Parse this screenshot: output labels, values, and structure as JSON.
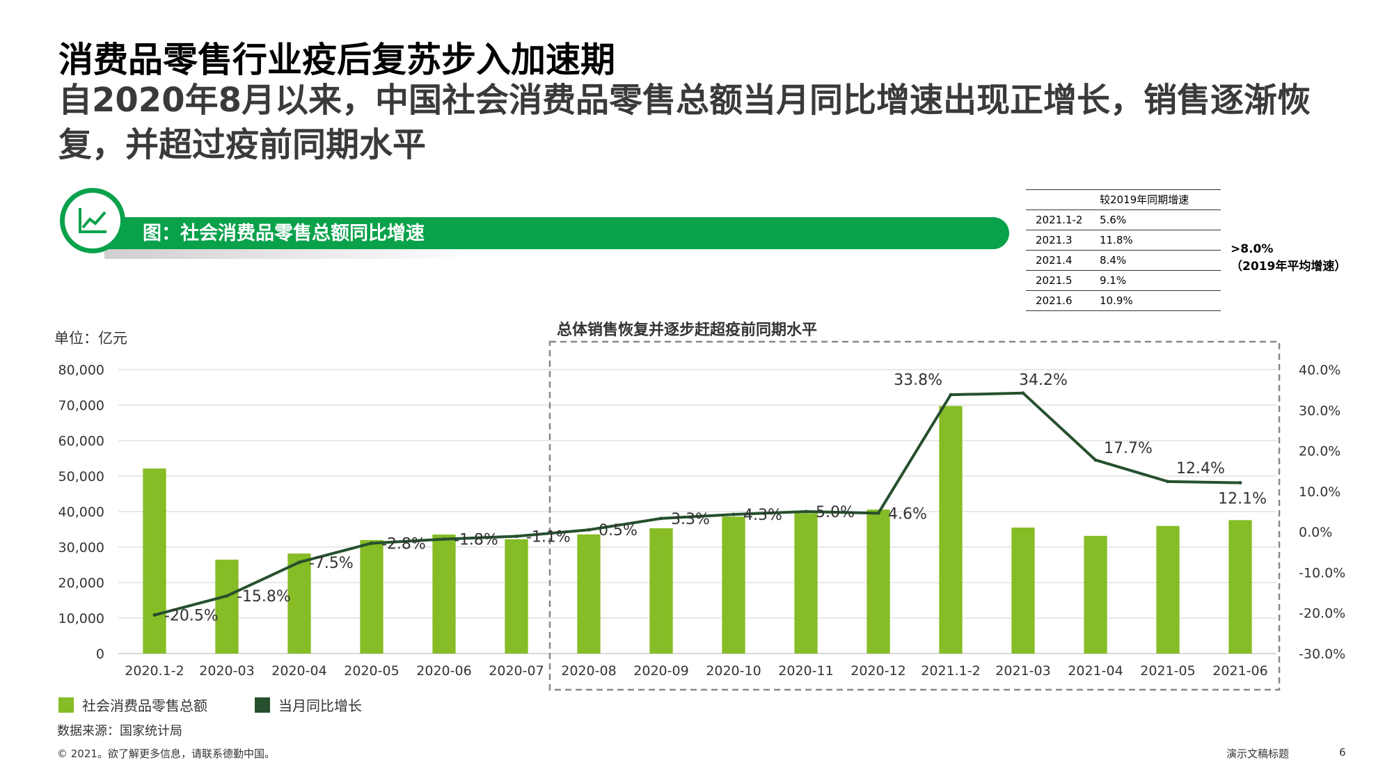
{
  "slide": {
    "title": "消费品零售行业疫后复苏步入加速期",
    "subtitle": "自2020年8月以来，中国社会消费品零售总额当月同比增速出现正增长，销售逐渐恢复，并超过疫前同期水平",
    "figure_banner": "图：社会消费品零售总额同比增速",
    "unit_label": "单位：亿元",
    "box_label": "总体销售恢复并逐步赶超疫前同期水平",
    "source": "数据来源：国家统计局",
    "copyright": "© 2021。欲了解更多信息，请联系德勤中国。",
    "footer_title": "演示文稿标题",
    "page_number": "6",
    "accent_green": "#0aa14b",
    "icon": "line-chart-icon"
  },
  "comparison_table": {
    "header": "较2019年同期增速",
    "rows": [
      {
        "period": "2021.1-2",
        "growth": "5.6%"
      },
      {
        "period": "2021.3",
        "growth": "11.8%"
      },
      {
        "period": "2021.4",
        "growth": "8.4%"
      },
      {
        "period": "2021.5",
        "growth": "9.1%"
      },
      {
        "period": "2021.6",
        "growth": "10.9%"
      }
    ],
    "note_line1": ">8.0%",
    "note_line2": "（2019年平均增速）"
  },
  "legend": {
    "bar": "社会消费品零售总额",
    "line": "当月同比增长"
  },
  "chart_data": {
    "type": "bar",
    "categories": [
      "2020.1-2",
      "2020-03",
      "2020-04",
      "2020-05",
      "2020-06",
      "2020-07",
      "2020-08",
      "2020-09",
      "2020-10",
      "2020-11",
      "2020-12",
      "2021.1-2",
      "2021-03",
      "2021-04",
      "2021-05",
      "2021-06"
    ],
    "series": [
      {
        "name": "社会消费品零售总额",
        "type": "bar",
        "axis": "left",
        "color": "#86bc25",
        "values": [
          52130,
          26450,
          28178,
          31973,
          33526,
          32203,
          33571,
          35295,
          38576,
          39514,
          40566,
          69737,
          35484,
          33153,
          35945,
          37586
        ]
      },
      {
        "name": "当月同比增长",
        "type": "line",
        "axis": "right",
        "color": "#26502e",
        "values": [
          -20.5,
          -15.8,
          -7.5,
          -2.8,
          -1.8,
          -1.1,
          0.5,
          3.3,
          4.3,
          5.0,
          4.6,
          33.8,
          34.2,
          17.7,
          12.4,
          12.1
        ],
        "labels": [
          "-20.5%",
          "-15.8%",
          "-7.5%",
          "-2.8%",
          "-1.8%",
          "-1.1%",
          "0.5%",
          "3.3%",
          "4.3%",
          "5.0%",
          "4.6%",
          "33.8%",
          "34.2%",
          "17.7%",
          "12.4%",
          "12.1%"
        ]
      }
    ],
    "y_left": {
      "min": 0,
      "max": 80000,
      "ticks": [
        "0",
        "10,000",
        "20,000",
        "30,000",
        "40,000",
        "50,000",
        "60,000",
        "70,000",
        "80,000"
      ]
    },
    "y_right": {
      "min": -30,
      "max": 40,
      "ticks": [
        "-30.0%",
        "-20.0%",
        "-10.0%",
        "0.0%",
        "10.0%",
        "20.0%",
        "30.0%",
        "40.0%"
      ]
    },
    "highlight_range": [
      "2020-08",
      "2021-06"
    ],
    "grid": true,
    "legend_position": "bottom-left"
  }
}
